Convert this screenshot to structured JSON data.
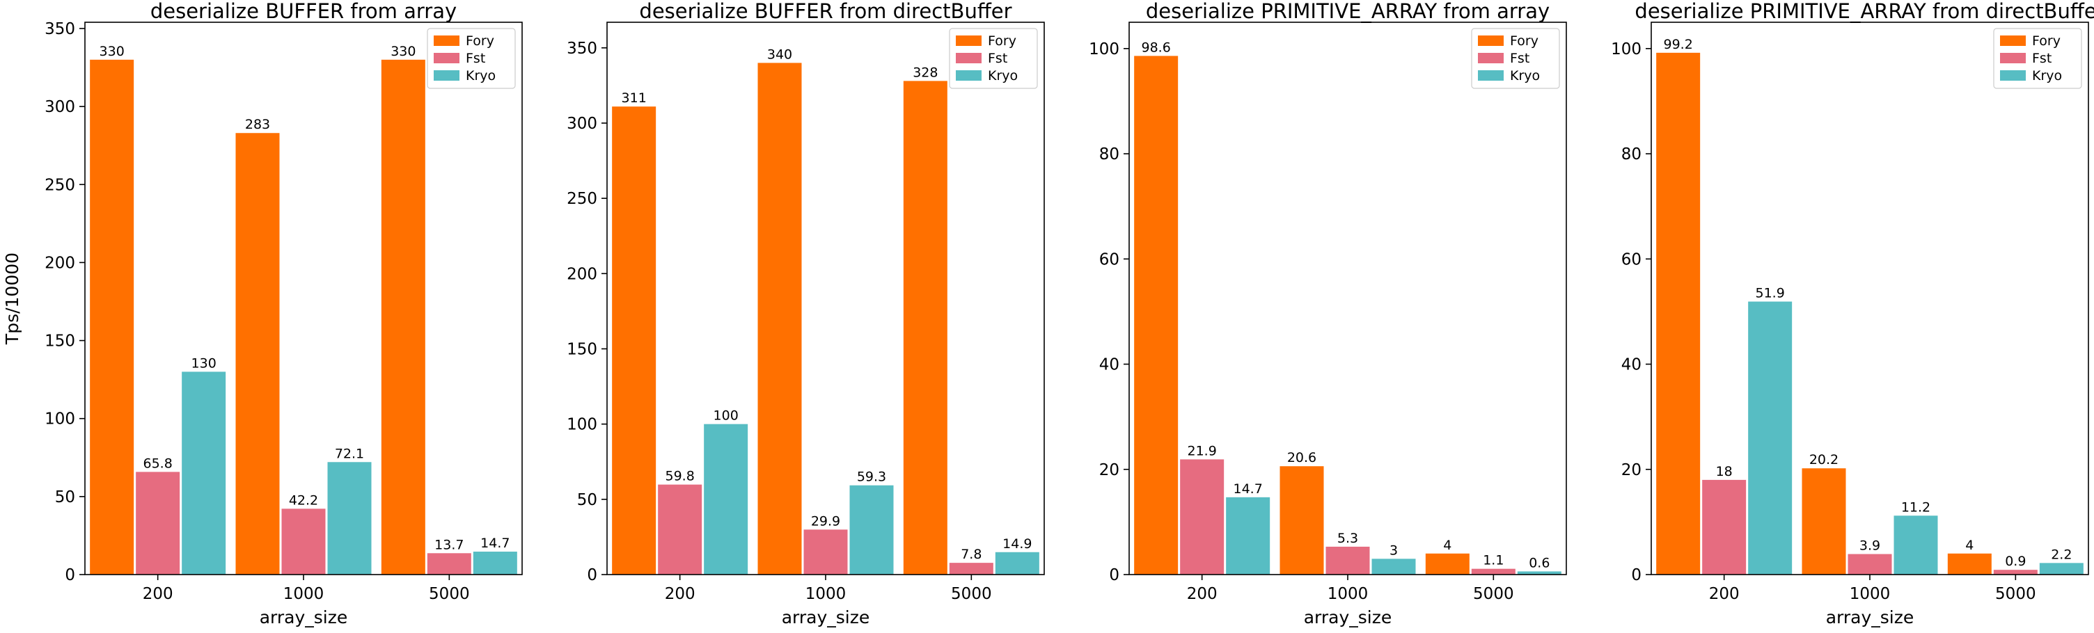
{
  "colors": {
    "Fory": "#ff7000",
    "Fst": "#e66c80",
    "Kryo": "#57bdc3"
  },
  "chart_data": [
    {
      "type": "bar",
      "title": "deserialize BUFFER from array",
      "xlabel": "array_size",
      "ylabel": "Tps/10000",
      "categories": [
        "200",
        "1000",
        "5000"
      ],
      "ylim": [
        0,
        354
      ],
      "yticks": [
        0,
        50,
        100,
        150,
        200,
        250,
        300,
        350
      ],
      "legend": "top-right",
      "series": [
        {
          "name": "Fory",
          "values": [
            330,
            283,
            330
          ],
          "labels": [
            "330",
            "283",
            "330"
          ]
        },
        {
          "name": "Fst",
          "values": [
            65.8,
            42.2,
            13.7
          ],
          "labels": [
            "65.8",
            "42.2",
            "13.7"
          ]
        },
        {
          "name": "Kryo",
          "values": [
            130,
            72.1,
            14.7
          ],
          "labels": [
            "130",
            "72.1",
            "14.7"
          ]
        }
      ]
    },
    {
      "type": "bar",
      "title": "deserialize BUFFER from directBuffer",
      "xlabel": "array_size",
      "ylabel": "",
      "categories": [
        "200",
        "1000",
        "5000"
      ],
      "ylim": [
        0,
        367
      ],
      "yticks": [
        0,
        50,
        100,
        150,
        200,
        250,
        300,
        350
      ],
      "legend": "top-right",
      "series": [
        {
          "name": "Fory",
          "values": [
            311,
            340,
            328
          ],
          "labels": [
            "311",
            "340",
            "328"
          ]
        },
        {
          "name": "Fst",
          "values": [
            59.8,
            29.9,
            7.8
          ],
          "labels": [
            "59.8",
            "29.9",
            "7.8"
          ]
        },
        {
          "name": "Kryo",
          "values": [
            100,
            59.3,
            14.9
          ],
          "labels": [
            "100",
            "59.3",
            "14.9"
          ]
        }
      ]
    },
    {
      "type": "bar",
      "title": "deserialize PRIMITIVE_ARRAY from array",
      "xlabel": "array_size",
      "ylabel": "",
      "categories": [
        "200",
        "1000",
        "5000"
      ],
      "ylim": [
        0,
        105
      ],
      "yticks": [
        0,
        20,
        40,
        60,
        80,
        100
      ],
      "legend": "top-right",
      "series": [
        {
          "name": "Fory",
          "values": [
            98.6,
            20.6,
            4
          ],
          "labels": [
            "98.6",
            "20.6",
            "4"
          ]
        },
        {
          "name": "Fst",
          "values": [
            21.9,
            5.3,
            1.1
          ],
          "labels": [
            "21.9",
            "5.3",
            "1.1"
          ]
        },
        {
          "name": "Kryo",
          "values": [
            14.7,
            3,
            0.6
          ],
          "labels": [
            "14.7",
            "3",
            "0.6"
          ]
        }
      ]
    },
    {
      "type": "bar",
      "title": "deserialize PRIMITIVE_ARRAY from directBuffer",
      "xlabel": "array_size",
      "ylabel": "",
      "categories": [
        "200",
        "1000",
        "5000"
      ],
      "ylim": [
        0,
        105
      ],
      "yticks": [
        0,
        20,
        40,
        60,
        80,
        100
      ],
      "legend": "top-right",
      "series": [
        {
          "name": "Fory",
          "values": [
            99.2,
            20.2,
            4
          ],
          "labels": [
            "99.2",
            "20.2",
            "4"
          ]
        },
        {
          "name": "Fst",
          "values": [
            18,
            3.9,
            0.9
          ],
          "labels": [
            "18",
            "3.9",
            "0.9"
          ]
        },
        {
          "name": "Kryo",
          "values": [
            51.9,
            11.2,
            2.2
          ],
          "labels": [
            "51.9",
            "11.2",
            "2.2"
          ]
        }
      ]
    }
  ]
}
